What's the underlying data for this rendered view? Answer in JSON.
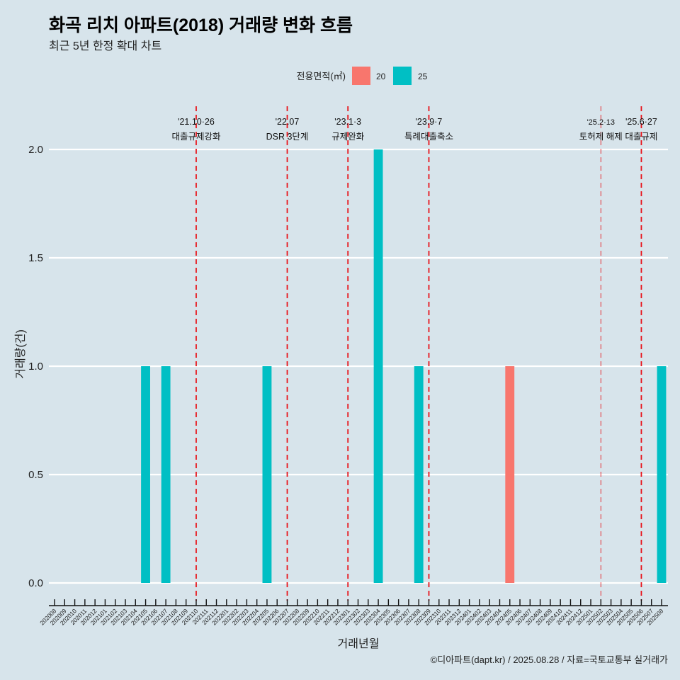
{
  "header": {
    "title": "화곡 리치 아파트(2018) 거래량 변화 흐름",
    "subtitle": "최근 5년 한정 확대 차트"
  },
  "legend": {
    "title": "전용면적(㎡)",
    "items": [
      {
        "label": "20",
        "color": "#F8766D"
      },
      {
        "label": "25",
        "color": "#00BFC4"
      }
    ]
  },
  "caption": "©디아파트(dapt.kr) / 2025.08.28 / 자료=국토교통부 실거래가",
  "chart_data": {
    "type": "bar",
    "title": "화곡 리치 아파트(2018) 거래량 변화 흐름",
    "subtitle": "최근 5년 한정 확대 차트",
    "xlabel": "거래년월",
    "ylabel": "거래량(건)",
    "ylim": [
      0,
      2
    ],
    "yticks": [
      0.0,
      0.5,
      1.0,
      1.5,
      2.0
    ],
    "ytick_labels": [
      "0.0",
      "0.5",
      "1.0",
      "1.5",
      "2.0"
    ],
    "grid": "horizontal-major",
    "legend_position": "top",
    "stacked": true,
    "categories": [
      "202008",
      "202009",
      "202010",
      "202011",
      "202012",
      "202101",
      "202102",
      "202103",
      "202104",
      "202105",
      "202106",
      "202107",
      "202108",
      "202109",
      "202110",
      "202111",
      "202112",
      "202201",
      "202202",
      "202203",
      "202204",
      "202205",
      "202206",
      "202207",
      "202208",
      "202209",
      "202210",
      "202211",
      "202212",
      "202301",
      "202302",
      "202303",
      "202304",
      "202305",
      "202306",
      "202307",
      "202308",
      "202309",
      "202310",
      "202311",
      "202312",
      "202401",
      "202402",
      "202403",
      "202404",
      "202405",
      "202406",
      "202407",
      "202408",
      "202409",
      "202410",
      "202411",
      "202412",
      "202501",
      "202502",
      "202503",
      "202504",
      "202505",
      "202506",
      "202507",
      "202508"
    ],
    "series": [
      {
        "name": "20",
        "color": "#F8766D",
        "values": [
          0,
          0,
          0,
          0,
          0,
          0,
          0,
          0,
          0,
          0,
          0,
          0,
          0,
          0,
          0,
          0,
          0,
          0,
          0,
          0,
          0,
          0,
          0,
          0,
          0,
          0,
          0,
          0,
          0,
          0,
          0,
          0,
          0,
          0,
          0,
          0,
          0,
          0,
          0,
          0,
          0,
          0,
          0,
          0,
          0,
          1,
          0,
          0,
          0,
          0,
          0,
          0,
          0,
          0,
          0,
          0,
          0,
          0,
          0,
          0,
          0
        ]
      },
      {
        "name": "25",
        "color": "#00BFC4",
        "values": [
          0,
          0,
          0,
          0,
          0,
          0,
          0,
          0,
          0,
          1,
          0,
          1,
          0,
          0,
          0,
          0,
          0,
          0,
          0,
          0,
          0,
          1,
          0,
          0,
          0,
          0,
          0,
          0,
          0,
          0,
          0,
          0,
          2,
          0,
          0,
          0,
          1,
          0,
          0,
          0,
          0,
          0,
          0,
          0,
          0,
          0,
          0,
          0,
          0,
          0,
          0,
          0,
          0,
          0,
          0,
          0,
          0,
          0,
          0,
          0,
          1
        ]
      }
    ],
    "annotations": [
      {
        "at": "202110",
        "date": "'21.10·26",
        "label": "대출규제강화",
        "color": "#E8141B",
        "style": "dashed"
      },
      {
        "at": "202207",
        "date": "'22.07",
        "label": "DSR 3단계",
        "color": "#E8141B",
        "style": "dashed"
      },
      {
        "at": "202301",
        "date": "'23.1·3",
        "label": "규제완화",
        "color": "#E8141B",
        "style": "dashed"
      },
      {
        "at": "202309",
        "date": "'23.9·7",
        "label": "특례대출축소",
        "color": "#E8141B",
        "style": "dashed"
      },
      {
        "at": "202502",
        "date": "'25.2·13",
        "label": "토허제 해제",
        "color": "#E8141B",
        "style": "dashed",
        "minor": true
      },
      {
        "at": "202506",
        "date": "'25.6·27",
        "label": "대출규제",
        "color": "#E8141B",
        "style": "dashed"
      }
    ]
  }
}
